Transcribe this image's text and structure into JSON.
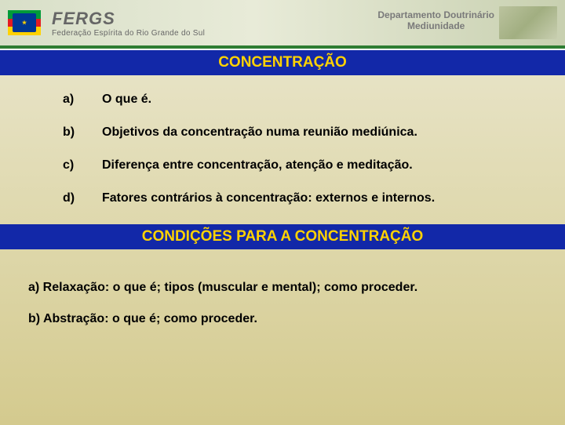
{
  "header": {
    "logo_title": "FERGS",
    "logo_subtitle": "Federação Espírita do Rio Grande do Sul",
    "dept_line1": "Departamento Doutrinário",
    "dept_line2": "Mediunidade"
  },
  "section1": {
    "title": "CONCENTRAÇÃO",
    "items": [
      {
        "key": "a)",
        "text": "O que é."
      },
      {
        "key": "b)",
        "text": "Objetivos da concentração numa reunião mediúnica."
      },
      {
        "key": "c)",
        "text": "Diferença entre concentração, atenção e meditação."
      },
      {
        "key": "d)",
        "text": "Fatores contrários à concentração: externos e internos."
      }
    ]
  },
  "section2": {
    "title": "CONDIÇÕES PARA A CONCENTRAÇÃO",
    "items": [
      {
        "text": "a)  Relaxação: o que é; tipos (muscular e mental); como proceder."
      },
      {
        "text": "b)  Abstração: o que é; como proceder."
      }
    ]
  },
  "colors": {
    "bar_bg": "#1228a8",
    "bar_text": "#ffd200",
    "green_line": "#2e7d32",
    "body_text": "#000000"
  },
  "typography": {
    "title_fontsize_pt": 19,
    "body_fontsize_pt": 16,
    "font_family": "Arial"
  }
}
